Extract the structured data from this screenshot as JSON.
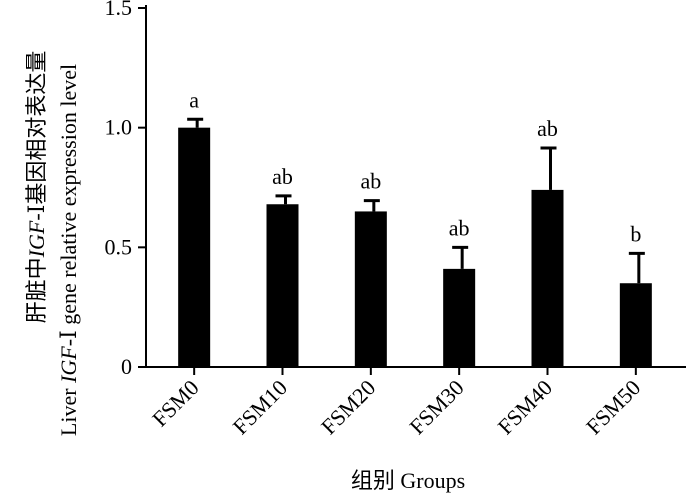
{
  "chart_data": {
    "type": "bar",
    "categories": [
      "FSM0",
      "FSM10",
      "FSM20",
      "FSM30",
      "FSM40",
      "FSM50"
    ],
    "values": [
      1.0,
      0.68,
      0.65,
      0.41,
      0.74,
      0.35
    ],
    "errors": [
      0.035,
      0.035,
      0.045,
      0.09,
      0.175,
      0.125
    ],
    "significance": [
      "a",
      "ab",
      "ab",
      "ab",
      "ab",
      "b"
    ],
    "ylim": [
      0,
      1.5
    ],
    "yticks": [
      "0",
      "0.5",
      "1.0",
      "1.5"
    ],
    "xlabel": "组别 Groups",
    "ylabel_cn": {
      "before": "肝脏中",
      "italic": "IGF-",
      "after": "Ⅰ基因相对表达量"
    },
    "ylabel_en": {
      "before": "Liver ",
      "italic": "IGF-",
      "after": "Ⅰ gene relative expression level"
    },
    "grid": false,
    "bar_color": "#000000"
  }
}
